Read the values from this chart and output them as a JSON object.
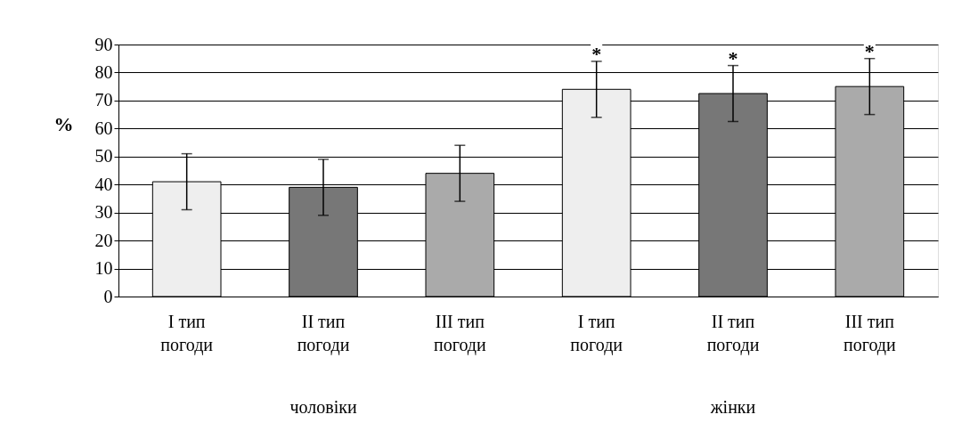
{
  "chart_data": {
    "type": "bar",
    "ylabel": "%",
    "categories": [
      "I тип погоди",
      "II тип погоди",
      "III тип погоди",
      "I тип погоди",
      "II тип погоди",
      "III тип погоди"
    ],
    "values": [
      41,
      39,
      44,
      74,
      72.5,
      75
    ],
    "errors": [
      10,
      10,
      10,
      10,
      10,
      10
    ],
    "colors": [
      "#eeeeee",
      "#777777",
      "#aaaaaa",
      "#eeeeee",
      "#777777",
      "#aaaaaa"
    ],
    "value_labels": [
      null,
      null,
      null,
      "*",
      "*",
      "*"
    ],
    "annotations": [
      "чоловіки",
      "жінки"
    ],
    "ylim": [
      0,
      90
    ],
    "yticks": [
      0,
      10,
      20,
      30,
      40,
      50,
      60,
      70,
      80,
      90
    ],
    "grid": "y",
    "legend": false
  }
}
